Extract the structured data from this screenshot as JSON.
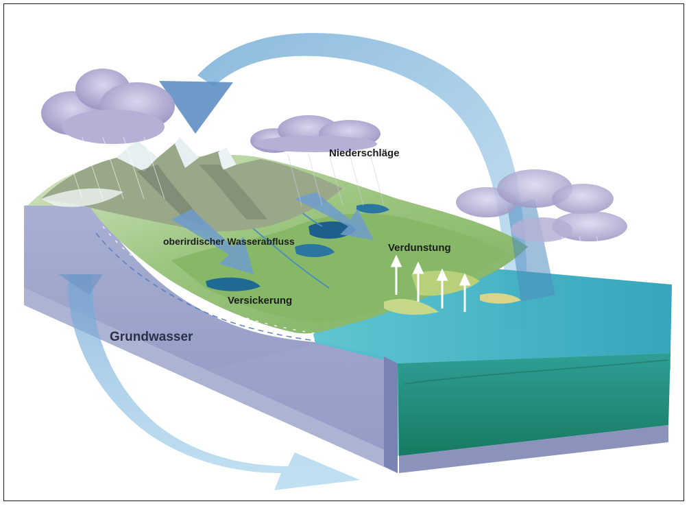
{
  "labels": {
    "precipitation": "Niederschläge",
    "surface_runoff": "oberirdischer Wasserabfluss",
    "evaporation": "Verdunstung",
    "infiltration": "Versickerung",
    "groundwater": "Grundwasser"
  },
  "colors": {
    "frame": "#1a1a1a",
    "block_side": "#9aa3c9",
    "block_front": "#aeb5d6",
    "water_top": "#3fb2c4",
    "water_side": "#1f8f7e",
    "land_green": "#8fbf74",
    "mountain": "#9aa68a",
    "snow": "#e8f2f4",
    "arrow_blue": "#7fb6da",
    "cloud": "#a8a4cc"
  }
}
